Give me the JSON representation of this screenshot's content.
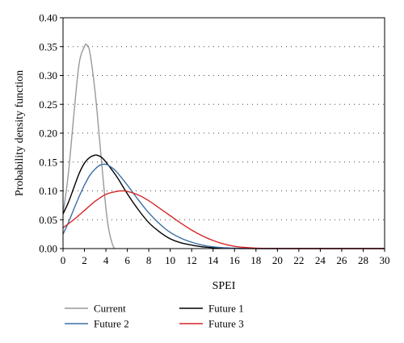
{
  "chart_data": {
    "type": "line",
    "xlabel": "SPEI",
    "ylabel": "Probability density function",
    "xlim": [
      0,
      30
    ],
    "ylim": [
      0,
      0.4
    ],
    "xticks": [
      0,
      2,
      4,
      6,
      8,
      10,
      12,
      14,
      16,
      18,
      20,
      22,
      24,
      26,
      28,
      30
    ],
    "yticks": [
      "0.00",
      "0.05",
      "0.10",
      "0.15",
      "0.20",
      "0.25",
      "0.30",
      "0.35",
      "0.40"
    ],
    "grid": "horizontal dotted",
    "legend_position": "bottom",
    "series": [
      {
        "name": "Current",
        "color": "#999999",
        "x": [
          0,
          0.5,
          1,
          1.5,
          2,
          2.2,
          2.5,
          3,
          3.5,
          4,
          4.3,
          4.6,
          4.8
        ],
        "y": [
          0.06,
          0.13,
          0.23,
          0.32,
          0.35,
          0.353,
          0.34,
          0.27,
          0.17,
          0.07,
          0.03,
          0.008,
          0
        ]
      },
      {
        "name": "Future 1",
        "color": "#000000",
        "x": [
          0,
          0.5,
          1,
          1.5,
          2,
          2.5,
          3,
          3.3,
          3.6,
          4,
          5,
          6,
          7,
          8,
          9,
          10,
          11,
          12,
          13,
          14,
          15,
          16,
          17,
          18,
          20,
          22,
          24,
          26,
          28,
          30
        ],
        "y": [
          0.06,
          0.08,
          0.105,
          0.13,
          0.148,
          0.158,
          0.162,
          0.161,
          0.158,
          0.15,
          0.125,
          0.095,
          0.068,
          0.045,
          0.029,
          0.017,
          0.01,
          0.006,
          0.003,
          0.0015,
          0.0007,
          0.0003,
          0.0001,
          0,
          0,
          0,
          0,
          0,
          0,
          0
        ]
      },
      {
        "name": "Future 2",
        "color": "#3a6ea5",
        "x": [
          0,
          0.5,
          1,
          1.5,
          2,
          2.5,
          3,
          3.5,
          4,
          4.5,
          5,
          6,
          7,
          8,
          9,
          10,
          11,
          12,
          13,
          14,
          15,
          16,
          17,
          18,
          20,
          22,
          24,
          26,
          28,
          30
        ],
        "y": [
          0.025,
          0.045,
          0.068,
          0.09,
          0.11,
          0.127,
          0.138,
          0.145,
          0.146,
          0.141,
          0.133,
          0.11,
          0.085,
          0.062,
          0.043,
          0.028,
          0.018,
          0.011,
          0.006,
          0.003,
          0.0015,
          0.0007,
          0.0003,
          0.0001,
          0,
          0,
          0,
          0,
          0,
          0
        ]
      },
      {
        "name": "Future 3",
        "color": "#d62728",
        "x": [
          0,
          1,
          2,
          3,
          4,
          5,
          5.5,
          6,
          7,
          8,
          9,
          10,
          11,
          12,
          13,
          14,
          15,
          16,
          17,
          18,
          19,
          20,
          22,
          24,
          26,
          28,
          30
        ],
        "y": [
          0.036,
          0.05,
          0.066,
          0.082,
          0.094,
          0.099,
          0.1,
          0.099,
          0.093,
          0.083,
          0.07,
          0.057,
          0.044,
          0.032,
          0.022,
          0.014,
          0.008,
          0.004,
          0.002,
          0.0008,
          0.0003,
          0.0001,
          0,
          0,
          0,
          0,
          0
        ]
      }
    ]
  }
}
